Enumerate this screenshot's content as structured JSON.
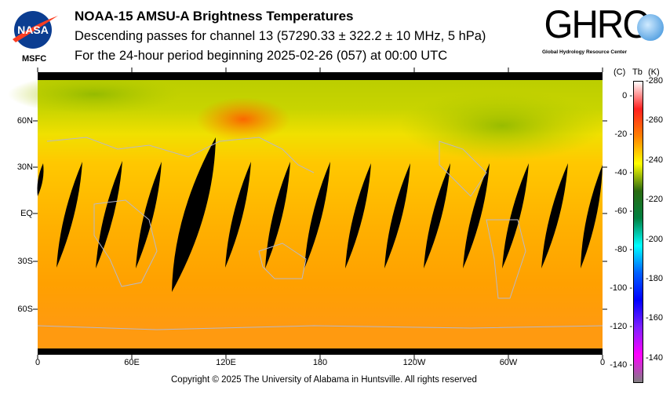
{
  "header": {
    "title": "NOAA-15 AMSU-A Brightness Temperatures",
    "line2": "Descending passes for channel 13 (57290.33 ± 322.2 ± 10 MHz, 5 hPa)",
    "line3": "For the 24-hour period beginning 2025-02-26 (057) at 00:00 UTC",
    "left_logo": {
      "text": "NASA",
      "caption": "MSFC"
    },
    "right_logo": {
      "text": "GHRC",
      "caption": "Global Hydrology Resource Center"
    }
  },
  "map": {
    "lat_labels": [
      "60N",
      "30N",
      "EQ",
      "30S",
      "60S"
    ],
    "lon_labels": [
      "0",
      "60E",
      "120E",
      "180",
      "120W",
      "60W",
      "0"
    ]
  },
  "colorbar": {
    "header_c": "(C)",
    "header_tb": "Tb",
    "header_k": "(K)",
    "kelvin_ticks": [
      "280",
      "260",
      "240",
      "220",
      "200",
      "180",
      "160",
      "140"
    ],
    "celsius_ticks": [
      "0",
      "-20",
      "-40",
      "-60",
      "-80",
      "-100",
      "-120",
      "-140"
    ],
    "colors": [
      "#ffffff",
      "#ff2020",
      "#ff8000",
      "#ffff00",
      "#2a6a10",
      "#008040",
      "#00ffff",
      "#0060ff",
      "#0000ff",
      "#8020ff",
      "#ff00ff",
      "#808080"
    ]
  },
  "footer": {
    "copyright": "Copyright © 2025 The University of Alabama in Huntsville.  All rights reserved"
  }
}
